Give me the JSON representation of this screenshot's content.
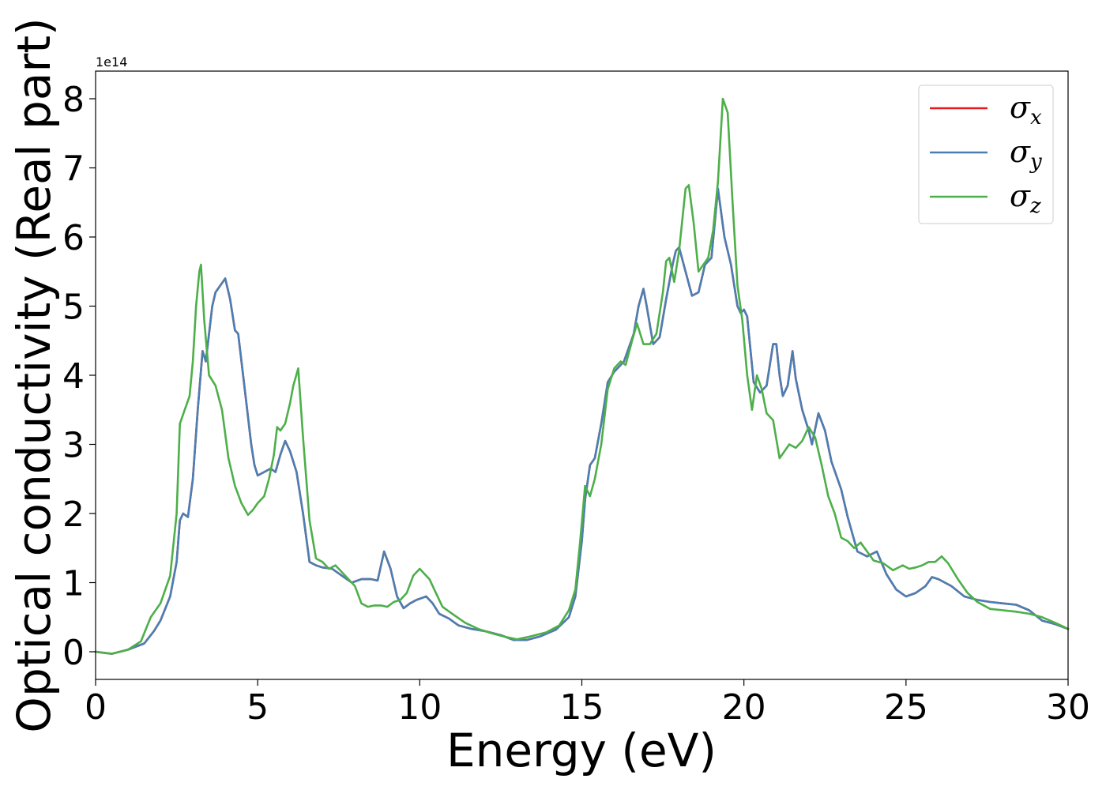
{
  "chart_data": {
    "type": "line",
    "title": "",
    "xlabel": "Energy (eV)",
    "ylabel": "Optical conductivity (Real part)",
    "y_offset_label": "1e14",
    "xlim": [
      0,
      30
    ],
    "ylim": [
      -0.4,
      8.4
    ],
    "xticks": [
      0,
      5,
      10,
      15,
      20,
      25,
      30
    ],
    "yticks": [
      0,
      1,
      2,
      3,
      4,
      5,
      6,
      7,
      8
    ],
    "grid": false,
    "legend_position": "top-right",
    "series": [
      {
        "name": "σ_x",
        "legend_symbol": "σ",
        "legend_sub": "x",
        "color": "#e41a1c",
        "x": [
          0,
          0.5,
          1,
          1.5,
          1.8,
          2,
          2.3,
          2.5,
          2.6,
          2.7,
          2.85,
          3.0,
          3.15,
          3.3,
          3.4,
          3.5,
          3.6,
          3.7,
          3.85,
          4.0,
          4.15,
          4.3,
          4.4,
          4.6,
          4.8,
          4.9,
          5.0,
          5.2,
          5.4,
          5.55,
          5.7,
          5.85,
          6.0,
          6.2,
          6.4,
          6.6,
          6.8,
          7.0,
          7.3,
          7.6,
          7.9,
          8.2,
          8.5,
          8.7,
          8.9,
          9.1,
          9.3,
          9.5,
          9.7,
          9.9,
          10.2,
          10.4,
          10.6,
          10.9,
          11.2,
          11.6,
          12.0,
          12.5,
          12.9,
          13.3,
          13.7,
          14.2,
          14.6,
          14.8,
          15.0,
          15.1,
          15.25,
          15.4,
          15.6,
          15.8,
          16.0,
          16.3,
          16.6,
          16.75,
          16.9,
          17.0,
          17.2,
          17.4,
          17.6,
          17.8,
          17.9,
          18.0,
          18.2,
          18.4,
          18.6,
          18.8,
          19.0,
          19.2,
          19.4,
          19.6,
          19.8,
          19.9,
          20.0,
          20.1,
          20.3,
          20.5,
          20.7,
          20.9,
          21.0,
          21.1,
          21.2,
          21.35,
          21.5,
          21.6,
          21.8,
          22.0,
          22.1,
          22.3,
          22.5,
          22.7,
          23.0,
          23.2,
          23.5,
          23.8,
          24.1,
          24.4,
          24.7,
          25.0,
          25.3,
          25.6,
          25.8,
          26.0,
          26.4,
          26.8,
          27.2,
          27.6,
          28.0,
          28.4,
          28.8,
          29.2,
          29.6,
          30.0
        ],
        "y": [
          0.0,
          -0.03,
          0.03,
          0.12,
          0.3,
          0.45,
          0.8,
          1.3,
          1.9,
          2.0,
          1.95,
          2.5,
          3.5,
          4.35,
          4.2,
          4.6,
          5.0,
          5.2,
          5.3,
          5.4,
          5.1,
          4.65,
          4.6,
          3.8,
          3.0,
          2.7,
          2.55,
          2.6,
          2.65,
          2.6,
          2.85,
          3.05,
          2.9,
          2.6,
          2.0,
          1.3,
          1.25,
          1.22,
          1.2,
          1.1,
          1.0,
          1.05,
          1.05,
          1.03,
          1.45,
          1.2,
          0.8,
          0.63,
          0.7,
          0.75,
          0.8,
          0.7,
          0.55,
          0.48,
          0.38,
          0.33,
          0.3,
          0.24,
          0.17,
          0.17,
          0.22,
          0.32,
          0.5,
          0.8,
          1.6,
          2.2,
          2.7,
          2.8,
          3.3,
          3.9,
          4.05,
          4.2,
          4.6,
          5.0,
          5.25,
          5.0,
          4.45,
          4.55,
          5.1,
          5.6,
          5.8,
          5.85,
          5.5,
          5.15,
          5.2,
          5.6,
          5.7,
          6.7,
          6.0,
          5.6,
          5.0,
          4.9,
          4.95,
          4.85,
          3.9,
          3.75,
          3.85,
          4.45,
          4.45,
          4.0,
          3.7,
          3.85,
          4.35,
          3.95,
          3.5,
          3.2,
          3.0,
          3.45,
          3.2,
          2.75,
          2.35,
          1.95,
          1.45,
          1.38,
          1.45,
          1.12,
          0.9,
          0.8,
          0.85,
          0.95,
          1.08,
          1.05,
          0.95,
          0.8,
          0.75,
          0.72,
          0.7,
          0.68,
          0.6,
          0.45,
          0.4,
          0.33
        ]
      },
      {
        "name": "σ_y",
        "legend_symbol": "σ",
        "legend_sub": "y",
        "color": "#4a7fb4",
        "x": [
          0,
          0.5,
          1,
          1.5,
          1.8,
          2,
          2.3,
          2.5,
          2.6,
          2.7,
          2.85,
          3.0,
          3.15,
          3.3,
          3.4,
          3.5,
          3.6,
          3.7,
          3.85,
          4.0,
          4.15,
          4.3,
          4.4,
          4.6,
          4.8,
          4.9,
          5.0,
          5.2,
          5.4,
          5.55,
          5.7,
          5.85,
          6.0,
          6.2,
          6.4,
          6.6,
          6.8,
          7.0,
          7.3,
          7.6,
          7.9,
          8.2,
          8.5,
          8.7,
          8.9,
          9.1,
          9.3,
          9.5,
          9.7,
          9.9,
          10.2,
          10.4,
          10.6,
          10.9,
          11.2,
          11.6,
          12.0,
          12.5,
          12.9,
          13.3,
          13.7,
          14.2,
          14.6,
          14.8,
          15.0,
          15.1,
          15.25,
          15.4,
          15.6,
          15.8,
          16.0,
          16.3,
          16.6,
          16.75,
          16.9,
          17.0,
          17.2,
          17.4,
          17.6,
          17.8,
          17.9,
          18.0,
          18.2,
          18.4,
          18.6,
          18.8,
          19.0,
          19.2,
          19.4,
          19.6,
          19.8,
          19.9,
          20.0,
          20.1,
          20.3,
          20.5,
          20.7,
          20.9,
          21.0,
          21.1,
          21.2,
          21.35,
          21.5,
          21.6,
          21.8,
          22.0,
          22.1,
          22.3,
          22.5,
          22.7,
          23.0,
          23.2,
          23.5,
          23.8,
          24.1,
          24.4,
          24.7,
          25.0,
          25.3,
          25.6,
          25.8,
          26.0,
          26.4,
          26.8,
          27.2,
          27.6,
          28.0,
          28.4,
          28.8,
          29.2,
          29.6,
          30.0
        ],
        "y": [
          0.0,
          -0.03,
          0.03,
          0.12,
          0.3,
          0.45,
          0.8,
          1.3,
          1.9,
          2.0,
          1.95,
          2.5,
          3.5,
          4.35,
          4.2,
          4.6,
          5.0,
          5.2,
          5.3,
          5.4,
          5.1,
          4.65,
          4.6,
          3.8,
          3.0,
          2.7,
          2.55,
          2.6,
          2.65,
          2.6,
          2.85,
          3.05,
          2.9,
          2.6,
          2.0,
          1.3,
          1.25,
          1.22,
          1.2,
          1.1,
          1.0,
          1.05,
          1.05,
          1.03,
          1.45,
          1.2,
          0.8,
          0.63,
          0.7,
          0.75,
          0.8,
          0.7,
          0.55,
          0.48,
          0.38,
          0.33,
          0.3,
          0.24,
          0.17,
          0.17,
          0.22,
          0.32,
          0.5,
          0.8,
          1.6,
          2.2,
          2.7,
          2.8,
          3.3,
          3.9,
          4.05,
          4.2,
          4.6,
          5.0,
          5.25,
          5.0,
          4.45,
          4.55,
          5.1,
          5.6,
          5.8,
          5.85,
          5.5,
          5.15,
          5.2,
          5.6,
          5.7,
          6.7,
          6.0,
          5.6,
          5.0,
          4.9,
          4.95,
          4.85,
          3.9,
          3.75,
          3.85,
          4.45,
          4.45,
          4.0,
          3.7,
          3.85,
          4.35,
          3.95,
          3.5,
          3.2,
          3.0,
          3.45,
          3.2,
          2.75,
          2.35,
          1.95,
          1.45,
          1.38,
          1.45,
          1.12,
          0.9,
          0.8,
          0.85,
          0.95,
          1.08,
          1.05,
          0.95,
          0.8,
          0.75,
          0.72,
          0.7,
          0.68,
          0.6,
          0.45,
          0.4,
          0.33
        ]
      },
      {
        "name": "σ_z",
        "legend_symbol": "σ",
        "legend_sub": "z",
        "color": "#4daf4a",
        "x": [
          0,
          0.5,
          1,
          1.4,
          1.7,
          2.0,
          2.3,
          2.5,
          2.6,
          2.75,
          2.9,
          3.0,
          3.1,
          3.2,
          3.25,
          3.35,
          3.5,
          3.7,
          3.9,
          4.1,
          4.3,
          4.5,
          4.7,
          4.85,
          5.0,
          5.2,
          5.35,
          5.5,
          5.6,
          5.7,
          5.85,
          6.0,
          6.1,
          6.25,
          6.4,
          6.6,
          6.8,
          7.0,
          7.2,
          7.4,
          7.6,
          7.8,
          8.0,
          8.2,
          8.4,
          8.6,
          8.8,
          9.0,
          9.2,
          9.4,
          9.6,
          9.8,
          10.0,
          10.3,
          10.5,
          10.7,
          11.0,
          11.4,
          11.8,
          12.2,
          12.6,
          13.0,
          13.4,
          13.9,
          14.3,
          14.6,
          14.8,
          14.95,
          15.1,
          15.25,
          15.4,
          15.6,
          15.8,
          16.0,
          16.2,
          16.35,
          16.55,
          16.7,
          16.9,
          17.1,
          17.3,
          17.5,
          17.6,
          17.7,
          17.85,
          18.0,
          18.2,
          18.3,
          18.45,
          18.6,
          18.75,
          18.9,
          19.05,
          19.2,
          19.35,
          19.5,
          19.65,
          19.8,
          19.95,
          20.1,
          20.25,
          20.4,
          20.55,
          20.7,
          20.9,
          21.1,
          21.25,
          21.4,
          21.6,
          21.8,
          22.0,
          22.2,
          22.4,
          22.6,
          22.8,
          23.0,
          23.2,
          23.4,
          23.6,
          23.8,
          24.0,
          24.3,
          24.6,
          24.9,
          25.1,
          25.3,
          25.5,
          25.7,
          25.9,
          26.1,
          26.3,
          26.6,
          26.9,
          27.2,
          27.6,
          28.0,
          28.4,
          28.8,
          29.2,
          29.6,
          30.0
        ],
        "y": [
          0.0,
          -0.03,
          0.03,
          0.15,
          0.5,
          0.7,
          1.1,
          2.0,
          3.3,
          3.5,
          3.7,
          4.2,
          5.0,
          5.5,
          5.6,
          4.8,
          4.0,
          3.85,
          3.5,
          2.8,
          2.4,
          2.15,
          1.98,
          2.05,
          2.15,
          2.25,
          2.5,
          2.85,
          3.25,
          3.2,
          3.3,
          3.6,
          3.85,
          4.1,
          3.1,
          1.9,
          1.35,
          1.3,
          1.2,
          1.25,
          1.15,
          1.05,
          0.95,
          0.7,
          0.65,
          0.67,
          0.67,
          0.65,
          0.72,
          0.75,
          0.85,
          1.1,
          1.2,
          1.05,
          0.85,
          0.65,
          0.55,
          0.42,
          0.33,
          0.27,
          0.22,
          0.18,
          0.22,
          0.28,
          0.38,
          0.6,
          0.9,
          1.6,
          2.4,
          2.25,
          2.5,
          3.0,
          3.8,
          4.1,
          4.2,
          4.15,
          4.5,
          4.75,
          4.45,
          4.45,
          4.6,
          5.2,
          5.65,
          5.7,
          5.35,
          5.8,
          6.7,
          6.75,
          6.2,
          5.5,
          5.6,
          5.7,
          6.1,
          6.8,
          8.0,
          7.8,
          6.5,
          5.3,
          4.8,
          4.0,
          3.5,
          4.0,
          3.8,
          3.45,
          3.35,
          2.8,
          2.9,
          3.0,
          2.95,
          3.05,
          3.25,
          3.1,
          2.7,
          2.25,
          2.0,
          1.65,
          1.6,
          1.5,
          1.58,
          1.45,
          1.32,
          1.28,
          1.18,
          1.25,
          1.2,
          1.22,
          1.25,
          1.3,
          1.3,
          1.38,
          1.28,
          1.05,
          0.85,
          0.72,
          0.62,
          0.6,
          0.58,
          0.55,
          0.5,
          0.42,
          0.33
        ]
      }
    ]
  }
}
